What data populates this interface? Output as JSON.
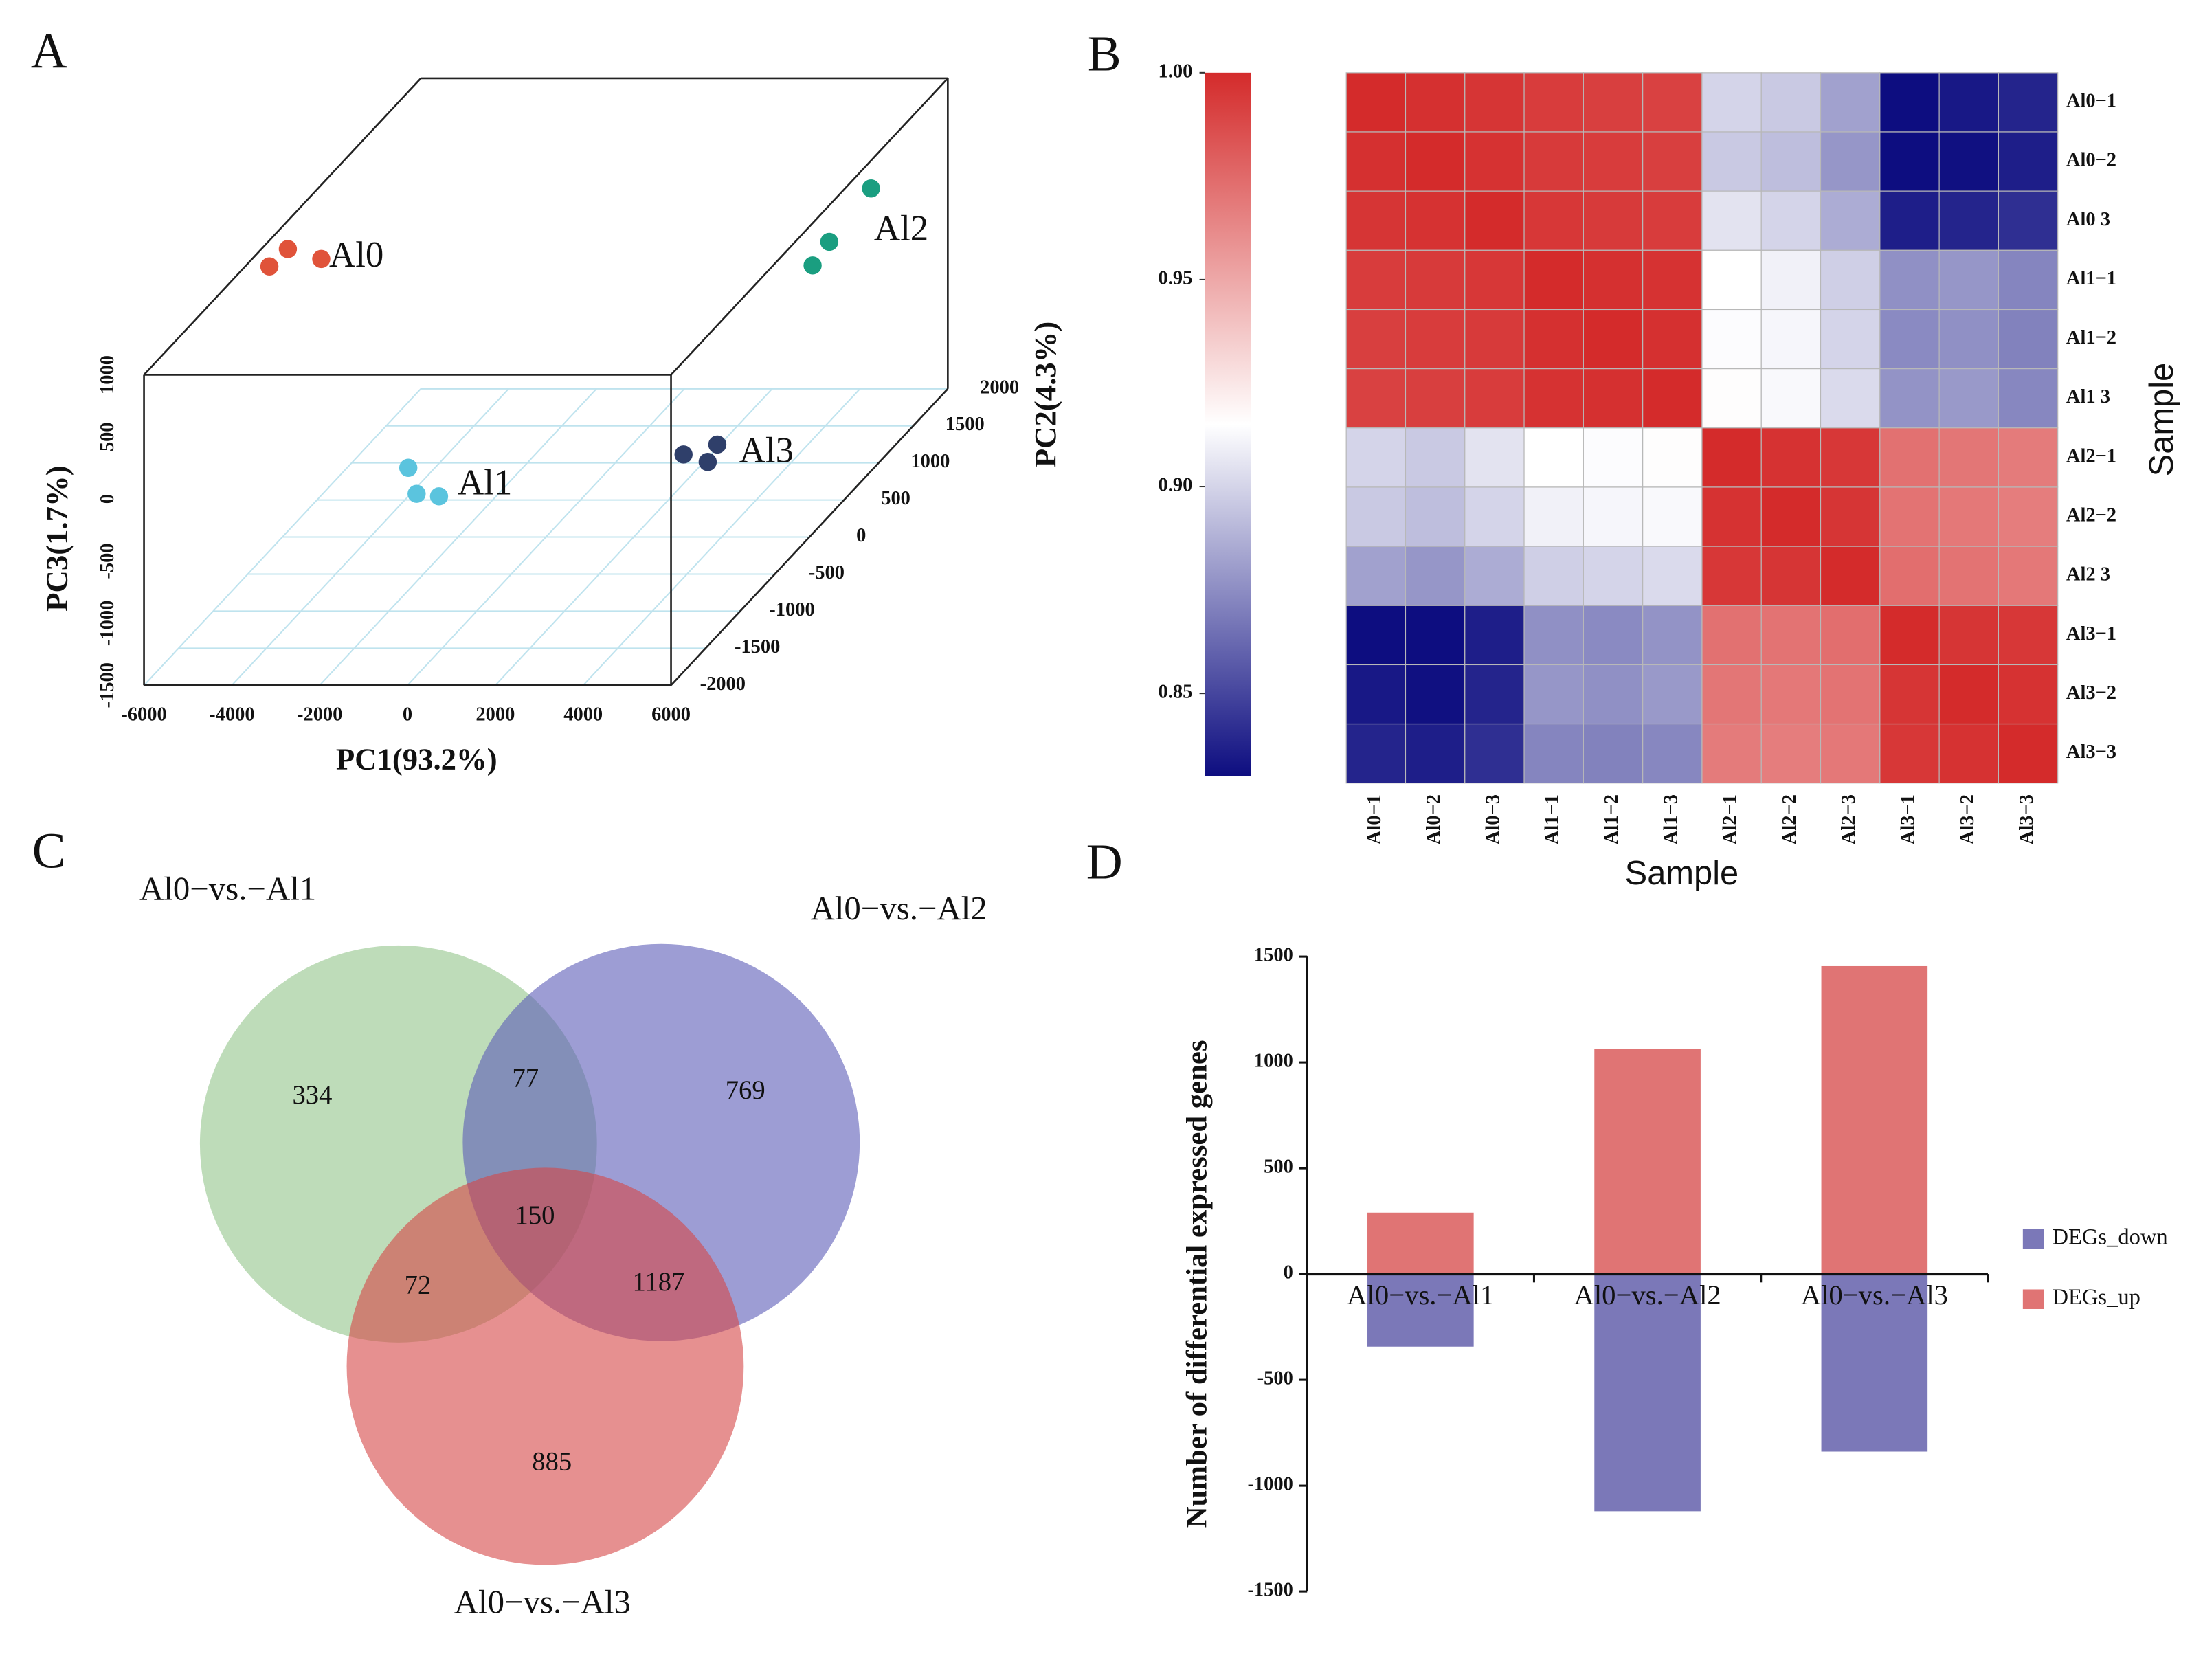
{
  "chart_data": [
    {
      "type": "scatter3d",
      "panel": "A",
      "xlabel": "PC1(93.2%)",
      "ylabel": "PC2(4.3%)",
      "zlabel": "PC3(1.7%)",
      "xlim": [
        -6000,
        6000
      ],
      "ylim": [
        -2000,
        2000
      ],
      "zlim": [
        -1500,
        1000
      ],
      "xticks": [
        -6000,
        -4000,
        -2000,
        0,
        2000,
        4000,
        6000
      ],
      "yticks": [
        -2000,
        -1500,
        -1000,
        -500,
        0,
        500,
        1000,
        1500,
        2000
      ],
      "zticks": [
        -1500,
        -1000,
        -500,
        0,
        500,
        1000
      ],
      "grid": true,
      "series": [
        {
          "name": "Al0",
          "color": "#e0533a",
          "x": [
            -5870,
            -5450,
            -4690
          ],
          "y": [
            -270,
            -270,
            -270
          ],
          "z": [
            840,
            980,
            900
          ]
        },
        {
          "name": "Al1",
          "color": "#5bc4de",
          "x": [
            -250,
            -60,
            450
          ],
          "y": [
            -1830,
            -1830,
            -1830
          ],
          "z": [
            150,
            -60,
            -80
          ]
        },
        {
          "name": "Al2",
          "color": "#1a9e80",
          "x": [
            4850,
            3900,
            3520
          ],
          "y": [
            1620,
            1620,
            1620
          ],
          "z": [
            340,
            -90,
            -280
          ]
        },
        {
          "name": "Al3",
          "color": "#2f3f6a",
          "x": [
            4520,
            5290,
            5070
          ],
          "y": [
            -880,
            -880,
            -880
          ],
          "z": [
            -310,
            -230,
            -370
          ]
        }
      ]
    },
    {
      "type": "heatmap",
      "panel": "B",
      "xlabel": "Sample",
      "ylabel": "Sample",
      "row_labels": [
        "Al0−1",
        "Al0−2",
        "Al0 3",
        "Al1−1",
        "Al1−2",
        "Al1 3",
        "Al2−1",
        "Al2−2",
        "Al2 3",
        "Al3−1",
        "Al3−2",
        "Al3−3"
      ],
      "col_labels": [
        "Al0−1",
        "Al0−2",
        "Al0−3",
        "Al1−1",
        "Al1−2",
        "Al1−3",
        "Al2−1",
        "Al2−2",
        "Al2−3",
        "Al3−1",
        "Al3−2",
        "Al3−3"
      ],
      "clim": [
        0.83,
        1.0
      ],
      "colors": [
        "#0d0d80",
        "#ffffff",
        "#d42b2b"
      ],
      "cticks": [
        0.85,
        {
          "value": 0.9,
          "label": "0.90"
        },
        0.95,
        {
          "value": 1.0,
          "label": "1.00"
        }
      ],
      "values": [
        [
          1.0,
          0.998,
          0.996,
          0.993,
          0.992,
          0.991,
          0.9,
          0.896,
          0.882,
          0.83,
          0.834,
          0.838
        ],
        [
          0.998,
          1.0,
          0.997,
          0.994,
          0.993,
          0.992,
          0.896,
          0.892,
          0.878,
          0.83,
          0.831,
          0.836
        ],
        [
          0.996,
          0.997,
          1.0,
          0.995,
          0.994,
          0.993,
          0.905,
          0.9,
          0.886,
          0.836,
          0.838,
          0.842
        ],
        [
          0.993,
          0.994,
          0.995,
          1.0,
          0.998,
          0.997,
          0.915,
          0.91,
          0.898,
          0.876,
          0.878,
          0.872
        ],
        [
          0.992,
          0.993,
          0.994,
          0.998,
          1.0,
          0.998,
          0.914,
          0.912,
          0.9,
          0.874,
          0.876,
          0.871
        ],
        [
          0.991,
          0.992,
          0.993,
          0.997,
          0.998,
          1.0,
          0.916,
          0.913,
          0.902,
          0.877,
          0.879,
          0.873
        ],
        [
          0.9,
          0.896,
          0.905,
          0.915,
          0.914,
          0.916,
          1.0,
          0.997,
          0.995,
          0.972,
          0.97,
          0.968
        ],
        [
          0.896,
          0.892,
          0.9,
          0.91,
          0.912,
          0.913,
          0.997,
          1.0,
          0.996,
          0.971,
          0.969,
          0.967
        ],
        [
          0.882,
          0.878,
          0.886,
          0.898,
          0.9,
          0.902,
          0.995,
          0.996,
          1.0,
          0.973,
          0.971,
          0.969
        ],
        [
          0.83,
          0.83,
          0.836,
          0.876,
          0.874,
          0.877,
          0.972,
          0.971,
          0.973,
          1.0,
          0.996,
          0.995
        ],
        [
          0.834,
          0.831,
          0.838,
          0.878,
          0.876,
          0.879,
          0.97,
          0.969,
          0.971,
          0.996,
          1.0,
          0.997
        ],
        [
          0.838,
          0.836,
          0.842,
          0.872,
          0.871,
          0.873,
          0.968,
          0.967,
          0.969,
          0.995,
          0.997,
          1.0
        ]
      ]
    },
    {
      "type": "venn",
      "panel": "C",
      "sets": [
        {
          "name": "Al0−vs.−Al1",
          "color": "#93c48a"
        },
        {
          "name": "Al0−vs.−Al2",
          "color": "#5c5cb8"
        },
        {
          "name": "Al0−vs.−Al3",
          "color": "#d54646"
        }
      ],
      "regions": [
        {
          "sets": [
            0
          ],
          "value": 334
        },
        {
          "sets": [
            0,
            1
          ],
          "value": 77
        },
        {
          "sets": [
            1
          ],
          "value": 769
        },
        {
          "sets": [
            0,
            1,
            2
          ],
          "value": 150
        },
        {
          "sets": [
            0,
            2
          ],
          "value": 72
        },
        {
          "sets": [
            1,
            2
          ],
          "value": 1187
        },
        {
          "sets": [
            2
          ],
          "value": 885
        }
      ]
    },
    {
      "type": "bar",
      "panel": "D",
      "ylabel": "Number of differential expressed genes",
      "categories": [
        "Al0−vs.−Al1",
        "Al0−vs.−Al2",
        "Al0−vs.−Al3"
      ],
      "ylim": [
        -1500,
        1500
      ],
      "yticks": [
        -1500,
        -1000,
        -500,
        0,
        500,
        1000,
        1500
      ],
      "legend": "right",
      "series": [
        {
          "name": "DEGs_down",
          "color": "#7b78b8",
          "values": [
            -343,
            -1121,
            -839
          ]
        },
        {
          "name": "DEGs_up",
          "color": "#e07474",
          "values": [
            290,
            1062,
            1455
          ]
        }
      ]
    }
  ]
}
